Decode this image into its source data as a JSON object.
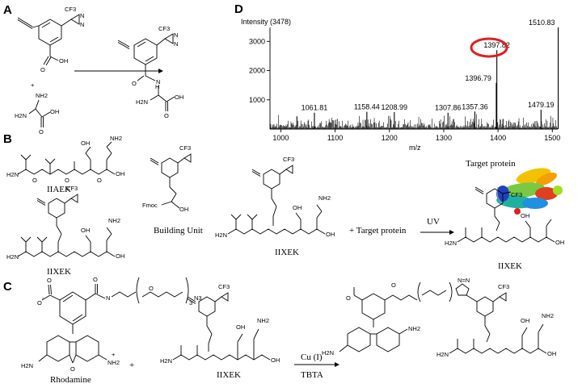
{
  "panels": {
    "a": "A",
    "b": "B",
    "c": "C",
    "d": "D"
  },
  "chem": {
    "cf3": "CF3",
    "n": "N",
    "n_eq": "N=",
    "oh": "OH",
    "cooh_oh": "OH",
    "o": "O",
    "nh2": "NH2",
    "h2n": "H2N",
    "hn": "N",
    "h": "H",
    "plus": "+",
    "fmoc": "Fmoc",
    "n3": "N3",
    "nh2_plus": "NH2",
    "o_minus": "O",
    "minus": "-",
    "bracket_sub": "3",
    "triazole": "N=N",
    "nh_plus": "+"
  },
  "labels": {
    "iiaek": "IIAEK",
    "iixek_b_left": "IIXEK",
    "building_unit": "Building Unit",
    "iixek_b_mid": "IIXEK",
    "plus_target": "+ Target protein",
    "uv": "UV",
    "target_protein": "Target protein",
    "iixek_b_right": "IIXEK",
    "rhodamine": "Rhodamine",
    "iixek_c": "IIXEK",
    "cu": "Cu (I)",
    "tbta": "TBTA",
    "plus_c": "+"
  },
  "chart_data": {
    "type": "bar",
    "title": "Intensity (3478)",
    "xlabel": "m/z",
    "ylabel": "",
    "xlim": [
      980,
      1510
    ],
    "ylim": [
      0,
      3478
    ],
    "xticks": [
      "1000",
      "1100",
      "1200",
      "1300",
      "1400",
      "1500"
    ],
    "yticks": [
      "1000",
      "2000",
      "3000"
    ],
    "labeled_peaks": [
      {
        "x": 1061.81,
        "y": 560,
        "label": "1061.81"
      },
      {
        "x": 1158.44,
        "y": 590,
        "label": "1158.44"
      },
      {
        "x": 1208.99,
        "y": 580,
        "label": "1208.99"
      },
      {
        "x": 1307.86,
        "y": 560,
        "label": "1307.86"
      },
      {
        "x": 1357.36,
        "y": 600,
        "label": "1357.36"
      },
      {
        "x": 1396.79,
        "y": 1580,
        "label": "1396.79"
      },
      {
        "x": 1397.82,
        "y": 2700,
        "label": "1397.82"
      },
      {
        "x": 1479.19,
        "y": 660,
        "label": "1479.19"
      },
      {
        "x": 1510.83,
        "y": 3478,
        "label": "1510.83"
      }
    ],
    "highlighted_peak": "1397.82",
    "highlight_color": "#e02020",
    "noise_level": 300
  }
}
